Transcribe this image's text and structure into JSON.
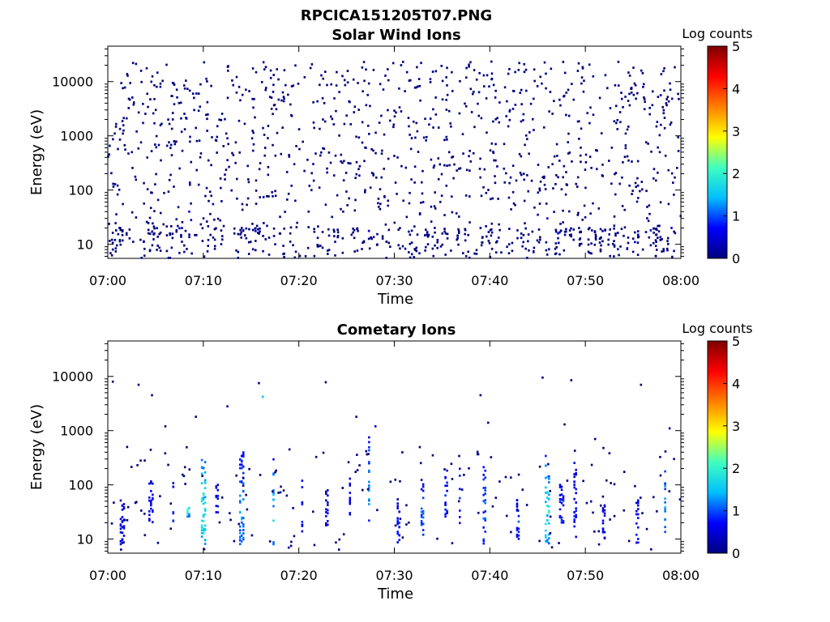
{
  "figure_title": "RPCICA151205T07.PNG",
  "colormap_stops": [
    "#00007f",
    "#0000ff",
    "#00bfff",
    "#40ffbf",
    "#ffff00",
    "#ff7f00",
    "#ff0000",
    "#7f0000"
  ],
  "chart_data": [
    {
      "type": "heatmap",
      "title": "Solar Wind Ions",
      "xlabel": "Time",
      "ylabel": "Energy (eV)",
      "y_scale": "log",
      "x_range_minutes": [
        0,
        60
      ],
      "y_range": [
        5.5,
        45000
      ],
      "x_ticks": [
        "07:00",
        "07:10",
        "07:20",
        "07:30",
        "07:40",
        "07:50",
        "08:00"
      ],
      "x_tick_minutes": [
        0,
        10,
        20,
        30,
        40,
        50,
        60
      ],
      "y_ticks": [
        10,
        100,
        1000,
        10000
      ],
      "y_tick_labels": [
        "10",
        "100",
        "1000",
        "10000"
      ],
      "colorbar": {
        "label": "Log counts",
        "range": [
          0,
          5
        ],
        "ticks": [
          "0",
          "1",
          "2",
          "3",
          "4",
          "5"
        ]
      },
      "description_of_values": "Sparse single counts (log count ~0) scattered across 5-20000 eV for the whole hour; a few cells at log count ~0.5 near 07:08-07:10 and 07:46.",
      "points": [
        [
          0.5,
          8,
          0
        ],
        [
          1.2,
          20,
          0
        ],
        [
          2.5,
          500,
          0
        ],
        [
          3.0,
          1200,
          0
        ],
        [
          4.5,
          90,
          0
        ],
        [
          5.0,
          3000,
          0
        ],
        [
          6.5,
          15,
          0
        ],
        [
          7.5,
          250,
          0
        ],
        [
          8.5,
          40,
          0.5
        ],
        [
          8.7,
          28,
          0.5
        ],
        [
          9.5,
          6000,
          0
        ],
        [
          10.5,
          12,
          0
        ],
        [
          11.0,
          55,
          0.4
        ],
        [
          12.5,
          900,
          0
        ],
        [
          14.0,
          20,
          0
        ],
        [
          15.5,
          150,
          0
        ],
        [
          16.5,
          7000,
          0
        ],
        [
          17.5,
          10,
          0
        ],
        [
          19.5,
          300,
          0
        ],
        [
          21.0,
          40,
          0
        ],
        [
          22.5,
          2000,
          0
        ],
        [
          24.0,
          80,
          0
        ],
        [
          25.5,
          15,
          0
        ],
        [
          27.0,
          600,
          0
        ],
        [
          28.5,
          9000,
          0
        ],
        [
          30.0,
          25,
          0
        ],
        [
          31.5,
          1500,
          0
        ],
        [
          33.0,
          60,
          0
        ],
        [
          34.5,
          12,
          0
        ],
        [
          36.0,
          400,
          0
        ],
        [
          37.5,
          3500,
          0
        ],
        [
          39.0,
          20,
          0
        ],
        [
          40.5,
          180,
          0
        ],
        [
          42.0,
          10,
          0
        ],
        [
          43.5,
          2500,
          0
        ],
        [
          45.0,
          35,
          0
        ],
        [
          46.0,
          30,
          0.5
        ],
        [
          47.0,
          700,
          0
        ],
        [
          48.5,
          14,
          0
        ],
        [
          50.0,
          110,
          0
        ],
        [
          51.5,
          5000,
          0
        ],
        [
          53.0,
          22,
          0
        ],
        [
          54.5,
          350,
          0
        ],
        [
          56.0,
          8,
          0
        ],
        [
          57.5,
          1800,
          0
        ],
        [
          59.0,
          20,
          0.3
        ]
      ]
    },
    {
      "type": "heatmap",
      "title": "Cometary Ions",
      "xlabel": "Time",
      "ylabel": "Energy (eV)",
      "y_scale": "log",
      "x_range_minutes": [
        0,
        60
      ],
      "y_range": [
        5.5,
        45000
      ],
      "x_ticks": [
        "07:00",
        "07:10",
        "07:20",
        "07:30",
        "07:40",
        "07:50",
        "08:00"
      ],
      "x_tick_minutes": [
        0,
        10,
        20,
        30,
        40,
        50,
        60
      ],
      "y_ticks": [
        10,
        100,
        1000,
        10000
      ],
      "y_tick_labels": [
        "10",
        "100",
        "1000",
        "10000"
      ],
      "colorbar": {
        "label": "Log counts",
        "range": [
          0,
          5
        ],
        "ticks": [
          "0",
          "1",
          "2",
          "3",
          "4",
          "5"
        ]
      },
      "description_of_values": "Intermittent bursts below ~500 eV with log counts up to ~2.5 (near 07:08-07:10, 07:14, 07:17, 07:46); sparse single counts at higher energies.",
      "bursts": [
        {
          "t": 1.5,
          "e_low": 8,
          "e_high": 60,
          "peak": 0.8
        },
        {
          "t": 4.5,
          "e_low": 20,
          "e_high": 120,
          "peak": 0.9
        },
        {
          "t": 7.0,
          "e_low": 20,
          "e_high": 120,
          "peak": 1.2
        },
        {
          "t": 8.5,
          "e_low": 25,
          "e_high": 60,
          "peak": 2.2
        },
        {
          "t": 10.0,
          "e_low": 8,
          "e_high": 300,
          "peak": 2.4
        },
        {
          "t": 11.5,
          "e_low": 30,
          "e_high": 100,
          "peak": 0.9
        },
        {
          "t": 14.0,
          "e_low": 8,
          "e_high": 400,
          "peak": 1.6
        },
        {
          "t": 17.5,
          "e_low": 8,
          "e_high": 300,
          "peak": 1.9
        },
        {
          "t": 20.5,
          "e_low": 10,
          "e_high": 120,
          "peak": 1.0
        },
        {
          "t": 23.0,
          "e_low": 15,
          "e_high": 80,
          "peak": 0.7
        },
        {
          "t": 25.5,
          "e_low": 20,
          "e_high": 150,
          "peak": 0.8
        },
        {
          "t": 27.5,
          "e_low": 20,
          "e_high": 800,
          "peak": 1.5
        },
        {
          "t": 30.5,
          "e_low": 8,
          "e_high": 60,
          "peak": 1.0
        },
        {
          "t": 33.0,
          "e_low": 12,
          "e_high": 150,
          "peak": 1.2
        },
        {
          "t": 35.5,
          "e_low": 25,
          "e_high": 300,
          "peak": 1.0
        },
        {
          "t": 37.0,
          "e_low": 15,
          "e_high": 200,
          "peak": 1.3
        },
        {
          "t": 39.5,
          "e_low": 8,
          "e_high": 250,
          "peak": 1.3
        },
        {
          "t": 43.0,
          "e_low": 10,
          "e_high": 60,
          "peak": 1.1
        },
        {
          "t": 46.0,
          "e_low": 8,
          "e_high": 400,
          "peak": 2.0
        },
        {
          "t": 47.5,
          "e_low": 20,
          "e_high": 100,
          "peak": 1.1
        },
        {
          "t": 49.0,
          "e_low": 8,
          "e_high": 300,
          "peak": 1.0
        },
        {
          "t": 52.0,
          "e_low": 10,
          "e_high": 50,
          "peak": 0.9
        },
        {
          "t": 55.5,
          "e_low": 8,
          "e_high": 60,
          "peak": 1.0
        },
        {
          "t": 58.5,
          "e_low": 12,
          "e_high": 400,
          "peak": 1.7
        }
      ],
      "sparse_points": [
        [
          0.5,
          8000,
          0
        ],
        [
          2.0,
          500,
          0
        ],
        [
          3.2,
          7000,
          0
        ],
        [
          4.6,
          4500,
          0
        ],
        [
          6.0,
          1200,
          0
        ],
        [
          9.2,
          1800,
          0
        ],
        [
          12.5,
          2800,
          0
        ],
        [
          15.8,
          7500,
          0
        ],
        [
          16.2,
          4200,
          1.5
        ],
        [
          19.0,
          450,
          0
        ],
        [
          22.8,
          7800,
          0
        ],
        [
          26.0,
          1800,
          0
        ],
        [
          28.0,
          1200,
          0.4
        ],
        [
          34.0,
          350,
          0
        ],
        [
          39.0,
          4500,
          0
        ],
        [
          39.8,
          1400,
          0
        ],
        [
          45.5,
          9500,
          0
        ],
        [
          47.8,
          1300,
          0
        ],
        [
          48.5,
          8500,
          0
        ],
        [
          51.0,
          700,
          0
        ],
        [
          55.8,
          7000,
          0
        ],
        [
          58.8,
          1100,
          0
        ]
      ]
    }
  ]
}
